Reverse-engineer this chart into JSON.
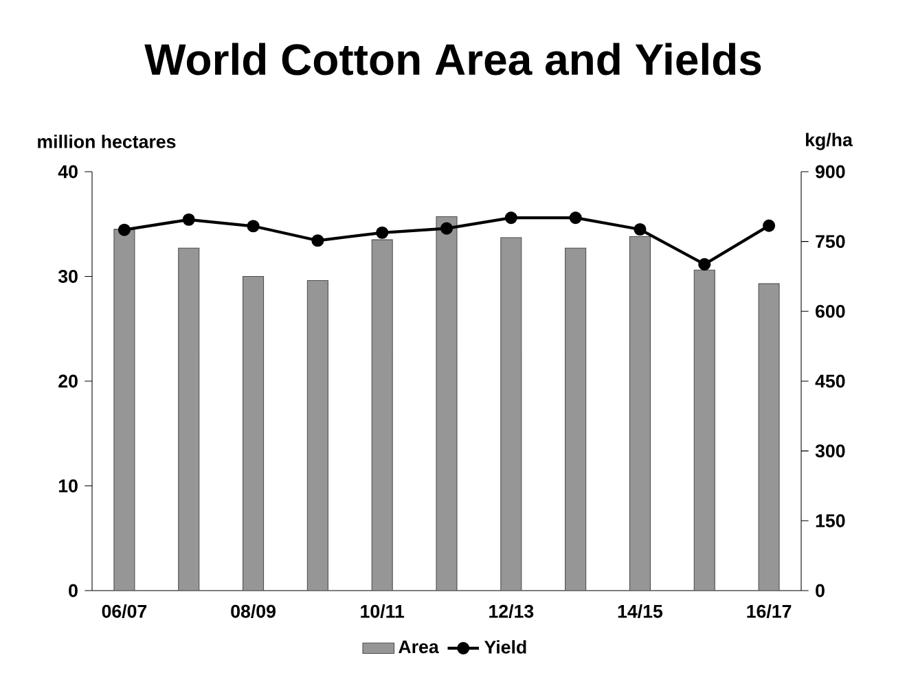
{
  "chart_data": {
    "type": "bar",
    "title": "World Cotton Area and Yields",
    "ylabel": "million hectares",
    "y2label": "kg/ha",
    "categories": [
      "06/07",
      null,
      "08/09",
      null,
      "10/11",
      null,
      "12/13",
      null,
      "14/15",
      null,
      "16/17"
    ],
    "series": [
      {
        "name": "Area",
        "color": "#969696",
        "values": [
          34.5,
          32.7,
          30.0,
          29.6,
          33.5,
          35.7,
          33.7,
          32.7,
          33.8,
          30.6,
          29.3
        ]
      },
      {
        "name": "Yield",
        "type": "line",
        "axis": "y2",
        "color": "#000000",
        "marker": "circle",
        "values": [
          775,
          797,
          783,
          752,
          769,
          778,
          801,
          801,
          776,
          701,
          784
        ]
      }
    ],
    "ylim": [
      0,
      40
    ],
    "yticks": [
      0,
      10,
      20,
      30,
      40
    ],
    "y2lim": [
      0,
      900
    ],
    "y2ticks": [
      0,
      150,
      300,
      450,
      600,
      750,
      900
    ],
    "grid": false,
    "legend": "bottom"
  }
}
